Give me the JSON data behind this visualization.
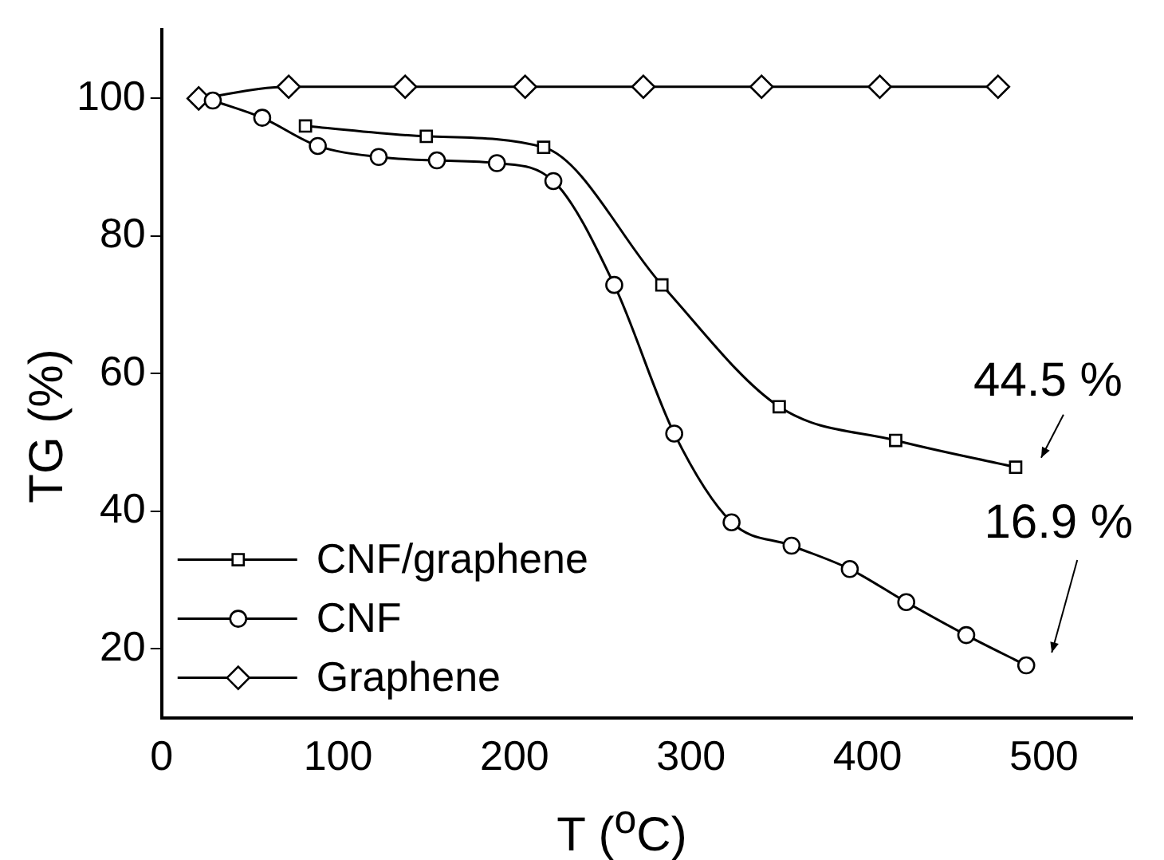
{
  "chart_data": {
    "type": "line",
    "xlabel": "T ($^{o}$C)",
    "ylabel": "TG (%)",
    "xlim": [
      0,
      550
    ],
    "xticks": [
      0,
      100,
      200,
      300,
      400,
      500
    ],
    "ylim": [
      10,
      110
    ],
    "yticks": [
      20,
      40,
      60,
      80,
      100
    ],
    "grid": false,
    "legend": "bottom left",
    "line_style": "solid",
    "series": [
      {
        "name": "CNF/graphene",
        "color": "#000000",
        "marker": "square",
        "x": [
          81.5,
          150,
          216.5,
          283.5,
          350,
          416,
          484
        ],
        "values": [
          96.0,
          94.5,
          92.9,
          72.9,
          55.2,
          50.3,
          46.4
        ]
      },
      {
        "name": "CNF",
        "color": "#000000",
        "marker": "circle",
        "x": [
          29,
          57,
          88.5,
          123,
          156,
          190,
          222,
          256.5,
          290.5,
          323,
          357,
          390,
          422,
          456,
          490
        ],
        "values": [
          99.7,
          97.2,
          93.1,
          91.5,
          91.0,
          90.6,
          88.0,
          72.9,
          51.3,
          38.4,
          35.0,
          31.6,
          26.8,
          22.0,
          17.6
        ]
      },
      {
        "name": "Graphene",
        "color": "#000000",
        "marker": "diamond",
        "x": [
          21,
          72,
          138,
          206,
          273,
          340,
          407,
          474
        ],
        "values": [
          100,
          101.7,
          101.7,
          101.7,
          101.7,
          101.7,
          101.7,
          101.7
        ]
      }
    ],
    "annotations": [
      "44.5 %",
      "16.9 %"
    ]
  }
}
